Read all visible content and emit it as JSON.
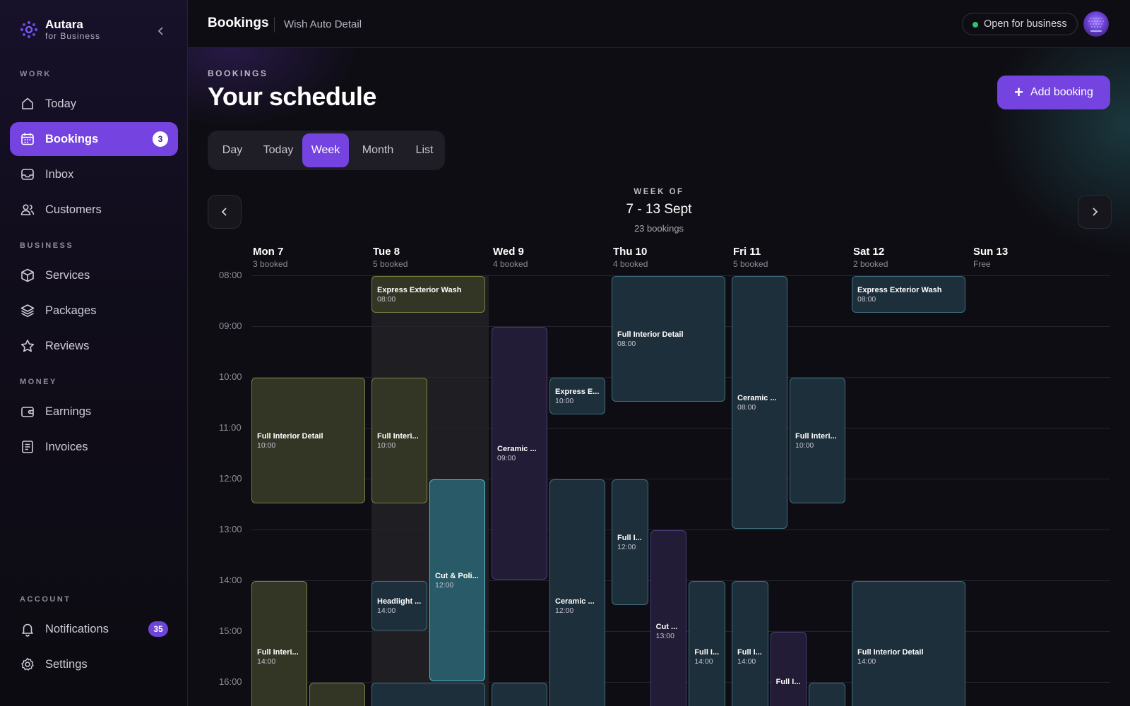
{
  "sidebar": {
    "brand_name": "Autara",
    "brand_sub": "for Business",
    "sections": {
      "work": "WORK",
      "business": "BUSINESS",
      "money": "MONEY",
      "account": "ACCOUNT"
    },
    "items": {
      "today": "Today",
      "bookings": "Bookings",
      "bookings_badge": "3",
      "inbox": "Inbox",
      "customers": "Customers",
      "services": "Services",
      "packages": "Packages",
      "reviews": "Reviews",
      "earnings": "Earnings",
      "invoices": "Invoices",
      "notifications": "Notifications",
      "notifications_badge": "35",
      "settings": "Settings"
    }
  },
  "topbar": {
    "title": "Bookings",
    "business": "Wish Auto Detail",
    "status": "Open for business",
    "status_color": "#2fc36e"
  },
  "main": {
    "eyebrow": "BOOKINGS",
    "title": "Your schedule",
    "add_label": "Add booking",
    "tabs": [
      "Day",
      "Today",
      "Week",
      "Month",
      "List"
    ],
    "active_tab": "Week",
    "week_eyebrow": "WEEK OF",
    "week_range": "7 - 13 Sept",
    "week_count": "23 bookings"
  },
  "calendar": {
    "days": [
      {
        "name": "Mon 7",
        "sub": "3 booked"
      },
      {
        "name": "Tue 8",
        "sub": "5 booked"
      },
      {
        "name": "Wed 9",
        "sub": "4 booked"
      },
      {
        "name": "Thu 10",
        "sub": "4 booked"
      },
      {
        "name": "Fri 11",
        "sub": "5 booked"
      },
      {
        "name": "Sat 12",
        "sub": "2 booked"
      },
      {
        "name": "Sun 13",
        "sub": "Free"
      }
    ],
    "hours": [
      "08:00",
      "09:00",
      "10:00",
      "11:00",
      "12:00",
      "13:00",
      "14:00",
      "15:00",
      "16:00"
    ],
    "events": [
      {
        "day": 0,
        "start": 10,
        "end": 12.5,
        "lane": 0,
        "lanes": 1,
        "title": "Full Interior Detail",
        "time": "10:00",
        "color": "olive"
      },
      {
        "day": 0,
        "start": 14,
        "end": 17,
        "lane": 0,
        "lanes": 2,
        "title": "Full Interi...",
        "time": "14:00",
        "color": "olive"
      },
      {
        "day": 0,
        "start": 16,
        "end": 17,
        "lane": 1,
        "lanes": 2,
        "title": "",
        "time": "",
        "color": "olive"
      },
      {
        "day": 1,
        "start": 8,
        "end": 8.75,
        "lane": 0,
        "lanes": 1,
        "title": "Express Exterior Wash",
        "time": "08:00",
        "color": "olive"
      },
      {
        "day": 1,
        "start": 10,
        "end": 12.5,
        "lane": 0,
        "lanes": 2,
        "title": "Full Interi...",
        "time": "10:00",
        "color": "olive"
      },
      {
        "day": 1,
        "start": 12,
        "end": 16,
        "lane": 1,
        "lanes": 2,
        "title": "Cut & Poli...",
        "time": "12:00",
        "color": "cyan"
      },
      {
        "day": 1,
        "start": 14,
        "end": 15,
        "lane": 0,
        "lanes": 2,
        "title": "Headlight ...",
        "time": "14:00",
        "color": "teal"
      },
      {
        "day": 1,
        "start": 16,
        "end": 17,
        "lane": 0,
        "lanes": 1,
        "title": "",
        "time": "",
        "color": "teal"
      },
      {
        "day": 2,
        "start": 9,
        "end": 14,
        "lane": 0,
        "lanes": 2,
        "title": "Ceramic ...",
        "time": "09:00",
        "color": "purple"
      },
      {
        "day": 2,
        "start": 10,
        "end": 10.75,
        "lane": 1,
        "lanes": 2,
        "title": "Express E...",
        "time": "10:00",
        "color": "teal"
      },
      {
        "day": 2,
        "start": 12,
        "end": 17,
        "lane": 1,
        "lanes": 2,
        "title": "Ceramic ...",
        "time": "12:00",
        "color": "teal"
      },
      {
        "day": 2,
        "start": 16,
        "end": 17,
        "lane": 0,
        "lanes": 2,
        "title": "",
        "time": "",
        "color": "teal"
      },
      {
        "day": 3,
        "start": 8,
        "end": 10.5,
        "lane": 0,
        "lanes": 1,
        "title": "Full Interior Detail",
        "time": "08:00",
        "color": "teal"
      },
      {
        "day": 3,
        "start": 12,
        "end": 14.5,
        "lane": 0,
        "lanes": 3,
        "title": "Full I...",
        "time": "12:00",
        "color": "teal"
      },
      {
        "day": 3,
        "start": 13,
        "end": 17,
        "lane": 1,
        "lanes": 3,
        "title": "Cut ...",
        "time": "13:00",
        "color": "purple"
      },
      {
        "day": 3,
        "start": 14,
        "end": 17,
        "lane": 2,
        "lanes": 3,
        "title": "Full I...",
        "time": "14:00",
        "color": "teal"
      },
      {
        "day": 4,
        "start": 8,
        "end": 13,
        "lane": 0,
        "lanes": 2,
        "title": "Ceramic ...",
        "time": "08:00",
        "color": "teal"
      },
      {
        "day": 4,
        "start": 10,
        "end": 12.5,
        "lane": 1,
        "lanes": 2,
        "title": "Full Interi...",
        "time": "10:00",
        "color": "teal"
      },
      {
        "day": 4,
        "start": 14,
        "end": 17,
        "lane": 0,
        "lanes": 3,
        "title": "Full I...",
        "time": "14:00",
        "color": "teal"
      },
      {
        "day": 4,
        "start": 15,
        "end": 17,
        "lane": 1,
        "lanes": 3,
        "title": "Full I...",
        "time": "",
        "color": "purple"
      },
      {
        "day": 4,
        "start": 16,
        "end": 17,
        "lane": 2,
        "lanes": 3,
        "title": "",
        "time": "",
        "color": "teal"
      },
      {
        "day": 5,
        "start": 8,
        "end": 8.75,
        "lane": 0,
        "lanes": 1,
        "title": "Express Exterior Wash",
        "time": "08:00",
        "color": "teal"
      },
      {
        "day": 5,
        "start": 14,
        "end": 17,
        "lane": 0,
        "lanes": 1,
        "title": "Full Interior Detail",
        "time": "14:00",
        "color": "teal"
      }
    ]
  }
}
